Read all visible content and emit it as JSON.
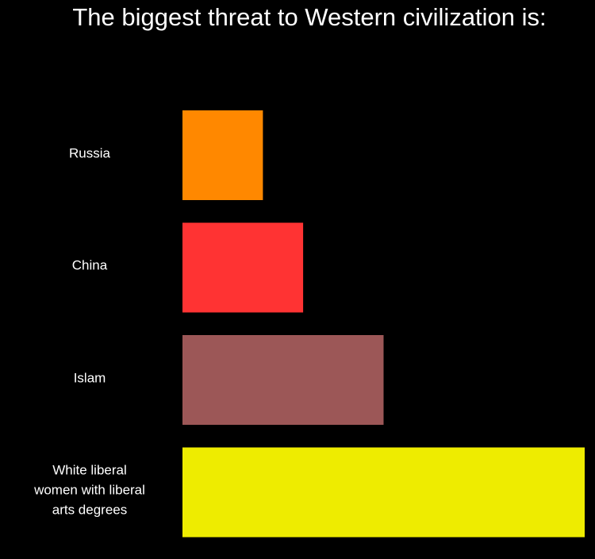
{
  "chart_data": {
    "type": "hbar",
    "title": "The biggest threat to Western civilization is:",
    "categories": [
      "Russia",
      "China",
      "Islam",
      "White liberal women with liberal arts degrees"
    ],
    "values": [
      20,
      30,
      50,
      100
    ],
    "colors": [
      "#ff8800",
      "#ff3333",
      "#9c5757",
      "#eeec00"
    ]
  }
}
